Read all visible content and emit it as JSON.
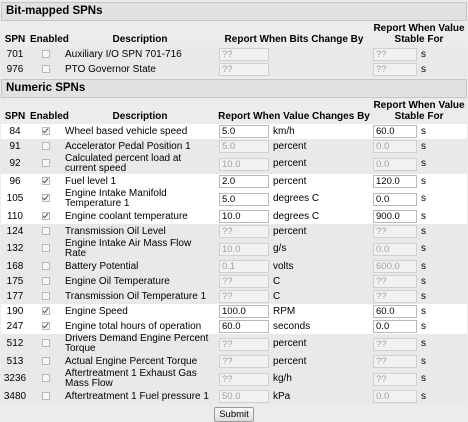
{
  "sections": [
    {
      "title": "Bit-mapped SPNs",
      "headers": [
        "SPN",
        "Enabled",
        "Description",
        "Report When Bits Change By",
        "Report When Value Stable For"
      ],
      "rows": [
        {
          "spn": "701",
          "enabled": false,
          "description": "Auxiliary I/O SPN 701-716",
          "change": "??",
          "stable": "??",
          "stable_unit": "s"
        },
        {
          "spn": "976",
          "enabled": false,
          "description": "PTO Governor State",
          "change": "??",
          "stable": "??",
          "stable_unit": "s"
        }
      ]
    },
    {
      "title": "Numeric SPNs",
      "headers": [
        "SPN",
        "Enabled",
        "Description",
        "Report When Value Changes By",
        "Report When Value Stable For"
      ],
      "rows": [
        {
          "spn": "84",
          "enabled": true,
          "description": "Wheel based vehicle speed",
          "change": "5.0",
          "unit": "km/h",
          "stable": "60.0",
          "stable_unit": "s"
        },
        {
          "spn": "91",
          "enabled": false,
          "description": "Accelerator Pedal Position 1",
          "change": "5.0",
          "unit": "percent",
          "stable": "0.0",
          "stable_unit": "s"
        },
        {
          "spn": "92",
          "enabled": false,
          "description": "Calculated percent load at current speed",
          "change": "10.0",
          "unit": "percent",
          "stable": "0.0",
          "stable_unit": "s"
        },
        {
          "spn": "96",
          "enabled": true,
          "description": "Fuel level 1",
          "change": "2.0",
          "unit": "percent",
          "stable": "120.0",
          "stable_unit": "s"
        },
        {
          "spn": "105",
          "enabled": true,
          "description": "Engine Intake Manifold Temperature 1",
          "change": "5.0",
          "unit": "degrees C",
          "stable": "0.0",
          "stable_unit": "s"
        },
        {
          "spn": "110",
          "enabled": true,
          "description": "Engine coolant temperature",
          "change": "10.0",
          "unit": "degrees C",
          "stable": "900.0",
          "stable_unit": "s"
        },
        {
          "spn": "124",
          "enabled": false,
          "description": "Transmission Oil Level",
          "change": "??",
          "unit": "percent",
          "stable": "??",
          "stable_unit": "s"
        },
        {
          "spn": "132",
          "enabled": false,
          "description": "Engine Intake Air Mass Flow Rate",
          "change": "10.0",
          "unit": "g/s",
          "stable": "0.0",
          "stable_unit": "s"
        },
        {
          "spn": "168",
          "enabled": false,
          "description": "Battery Potential",
          "change": "0.1",
          "unit": "volts",
          "stable": "600.0",
          "stable_unit": "s"
        },
        {
          "spn": "175",
          "enabled": false,
          "description": "Engine Oil Temperature",
          "change": "??",
          "unit": "C",
          "stable": "??",
          "stable_unit": "s"
        },
        {
          "spn": "177",
          "enabled": false,
          "description": "Transmission Oil Temperature 1",
          "change": "??",
          "unit": "C",
          "stable": "??",
          "stable_unit": "s"
        },
        {
          "spn": "190",
          "enabled": true,
          "description": "Engine Speed",
          "change": "100.0",
          "unit": "RPM",
          "stable": "60.0",
          "stable_unit": "s"
        },
        {
          "spn": "247",
          "enabled": true,
          "description": "Engine total hours of operation",
          "change": "60.0",
          "unit": "seconds",
          "stable": "0.0",
          "stable_unit": "s"
        },
        {
          "spn": "512",
          "enabled": false,
          "description": "Drivers Demand Engine Percent Torque",
          "change": "??",
          "unit": "percent",
          "stable": "??",
          "stable_unit": "s"
        },
        {
          "spn": "513",
          "enabled": false,
          "description": "Actual Engine Percent Torque",
          "change": "??",
          "unit": "percent",
          "stable": "??",
          "stable_unit": "s"
        },
        {
          "spn": "3236",
          "enabled": false,
          "description": "Aftertreatment 1 Exhaust Gas Mass Flow",
          "change": "??",
          "unit": "kg/h",
          "stable": "??",
          "stable_unit": "s"
        },
        {
          "spn": "3480",
          "enabled": false,
          "description": "Aftertreatment 1 Fuel pressure 1",
          "change": "50.0",
          "unit": "kPa",
          "stable": "0.0",
          "stable_unit": "s"
        }
      ]
    }
  ],
  "submit": "Submit"
}
